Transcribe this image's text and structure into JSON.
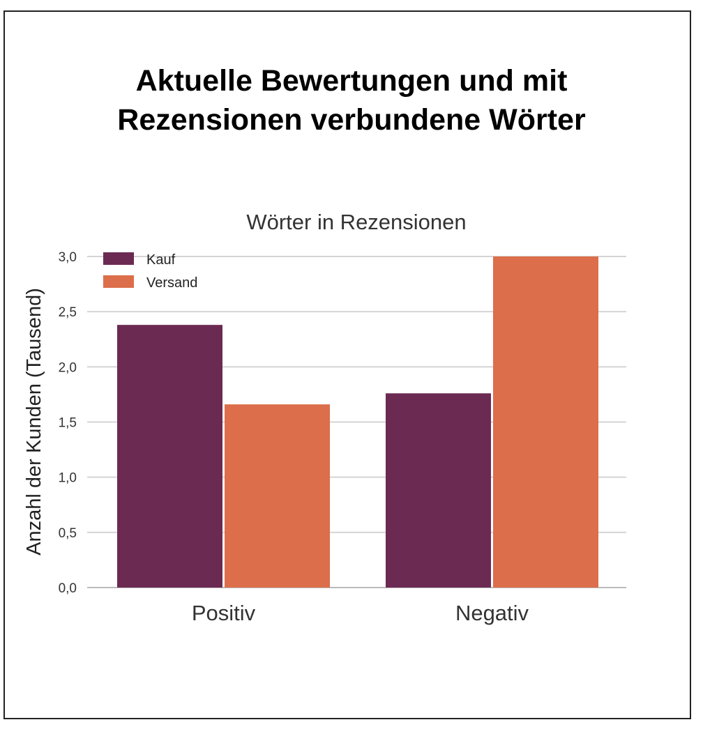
{
  "title_lines": [
    "Aktuelle Bewertungen und mit",
    "Rezensionen verbundene Wörter"
  ],
  "chart_data": {
    "type": "bar",
    "title": "Wörter in Rezensionen",
    "xlabel": "",
    "ylabel": "Anzahl der Kunden (Tausend)",
    "categories": [
      "Positiv",
      "Negativ"
    ],
    "series": [
      {
        "name": "Kauf",
        "values": [
          2.38,
          1.76
        ],
        "color": "#6b2a52"
      },
      {
        "name": "Versand",
        "values": [
          1.66,
          3.0
        ],
        "color": "#dc6e4b"
      }
    ],
    "ylim": [
      0,
      3.0
    ],
    "yticks": [
      "0,0",
      "0,5",
      "1,0",
      "1,5",
      "2,0",
      "2,5",
      "3,0"
    ],
    "ytick_values": [
      0,
      0.5,
      1.0,
      1.5,
      2.0,
      2.5,
      3.0
    ],
    "grid": true,
    "legend_position": "top-left"
  }
}
